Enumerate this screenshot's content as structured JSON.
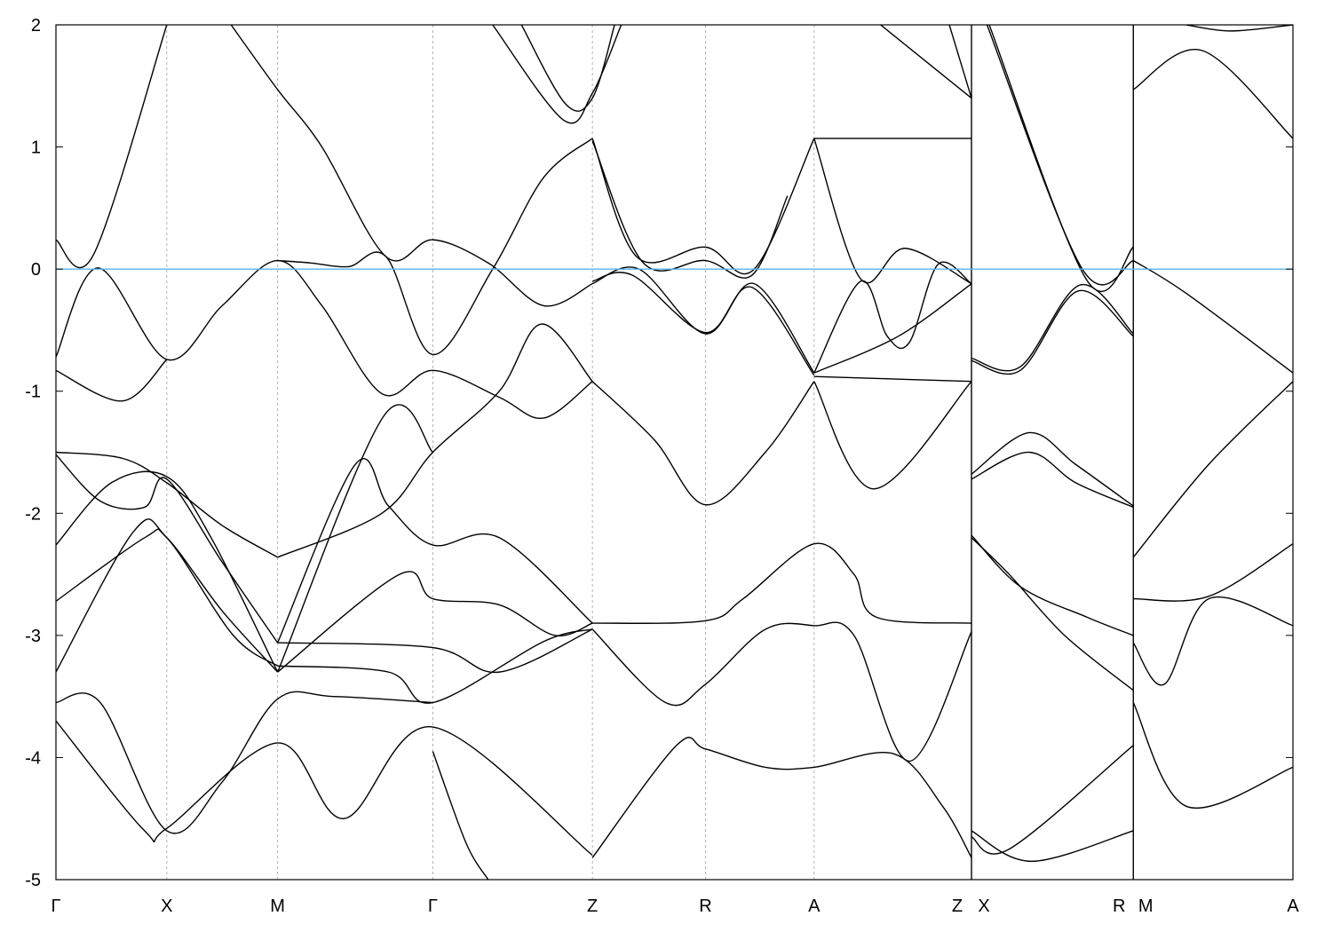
{
  "chart_data": {
    "type": "line",
    "title": "",
    "xlabel": "",
    "ylabel": "",
    "ylim": [
      -5,
      2
    ],
    "xlim": [
      0,
      5.58
    ],
    "yticks": [
      -5,
      -4,
      -3,
      -2,
      -1,
      0,
      1,
      2
    ],
    "ytick_labels": [
      "-5",
      "-4",
      "-3",
      "-2",
      "-1",
      "0",
      "1",
      "2"
    ],
    "xticks": [
      {
        "label": "Γ",
        "k": 0
      },
      {
        "label": "X",
        "k": 0.5
      },
      {
        "label": "M",
        "k": 1.0
      },
      {
        "label": "Γ",
        "k": 1.7
      },
      {
        "label": "Z",
        "k": 2.42
      },
      {
        "label": "R",
        "k": 2.93
      },
      {
        "label": "A",
        "k": 3.42
      },
      {
        "label": "Z",
        "k": 4.13,
        "side": "left"
      },
      {
        "label": "X",
        "k": 4.13,
        "side": "right"
      },
      {
        "label": "R",
        "k": 4.86,
        "side": "left"
      },
      {
        "label": "M",
        "k": 4.86,
        "side": "right"
      },
      {
        "label": "A",
        "k": 5.58
      }
    ],
    "path_breaks": [
      4.13,
      4.86
    ],
    "grid": "vertical dashed at symmetry points",
    "fermi_level": 0,
    "colors": {
      "bands": "#000000",
      "fermi_line": "#56b4e9",
      "grid": "#a0a0a0"
    },
    "bands": [
      [
        [
          0,
          0.24
        ],
        [
          0.17,
          0.12
        ],
        [
          0.5,
          2.0
        ]
      ],
      [
        [
          0,
          -0.72
        ],
        [
          0.19,
          0.01
        ],
        [
          0.5,
          -0.74
        ],
        [
          0.75,
          -0.3
        ],
        [
          1.0,
          0.07
        ],
        [
          1.2,
          -0.3
        ],
        [
          1.47,
          -1.02
        ],
        [
          1.7,
          -0.83
        ],
        [
          2.0,
          -1.05
        ],
        [
          2.2,
          -1.22
        ],
        [
          2.42,
          -0.92
        ]
      ],
      [
        [
          0,
          -0.83
        ],
        [
          0.3,
          -1.08
        ],
        [
          0.5,
          -0.74
        ]
      ],
      [
        [
          1.0,
          0.07
        ],
        [
          1.15,
          0.05
        ],
        [
          1.32,
          0.02
        ],
        [
          1.49,
          0.1
        ],
        [
          1.7,
          -0.7
        ],
        [
          1.97,
          0.0
        ],
        [
          2.2,
          0.75
        ],
        [
          2.42,
          1.07
        ]
      ],
      [
        [
          0.79,
          2.0
        ],
        [
          1.0,
          1.47
        ],
        [
          1.2,
          1.0
        ],
        [
          1.49,
          0.1
        ],
        [
          1.7,
          0.24
        ],
        [
          1.95,
          0.05
        ],
        [
          2.2,
          -0.3
        ],
        [
          2.42,
          -0.12
        ]
      ],
      [
        [
          2.42,
          -0.12
        ],
        [
          2.63,
          0.0
        ],
        [
          2.93,
          -0.53
        ],
        [
          3.15,
          -0.12
        ],
        [
          3.42,
          -0.85
        ]
      ],
      [
        [
          2.42,
          -0.1
        ],
        [
          2.6,
          -0.05
        ],
        [
          2.93,
          -0.52
        ],
        [
          3.14,
          -0.15
        ],
        [
          3.42,
          -0.87
        ]
      ],
      [
        [
          2.42,
          1.07
        ],
        [
          2.62,
          0.1
        ],
        [
          2.93,
          0.18
        ],
        [
          3.15,
          0.0
        ],
        [
          3.42,
          1.07
        ]
      ],
      [
        [
          2.42,
          1.05
        ],
        [
          2.65,
          0.05
        ],
        [
          2.93,
          0.07
        ],
        [
          3.14,
          -0.05
        ],
        [
          3.3,
          0.6
        ]
      ],
      [
        [
          3.42,
          1.07
        ],
        [
          3.63,
          -0.08
        ],
        [
          3.83,
          0.17
        ],
        [
          4.13,
          -0.12
        ]
      ],
      [
        [
          3.42,
          1.07
        ],
        [
          4.13,
          1.07
        ]
      ],
      [
        [
          3.42,
          -0.85
        ],
        [
          3.63,
          -0.1
        ],
        [
          3.75,
          -0.55
        ],
        [
          3.85,
          -0.6
        ],
        [
          3.98,
          0.04
        ],
        [
          4.13,
          -0.12
        ]
      ],
      [
        [
          3.42,
          -0.85
        ],
        [
          3.8,
          -0.55
        ],
        [
          4.13,
          -0.12
        ]
      ],
      [
        [
          2.1,
          2.0
        ],
        [
          2.3,
          1.35
        ],
        [
          2.42,
          1.4
        ],
        [
          2.52,
          2.0
        ]
      ],
      [
        [
          1.97,
          2.0
        ],
        [
          2.29,
          1.22
        ],
        [
          2.42,
          1.44
        ],
        [
          2.55,
          2.0
        ]
      ],
      [
        [
          3.72,
          2.0
        ],
        [
          4.13,
          1.4
        ]
      ],
      [
        [
          4.03,
          2.0
        ],
        [
          4.13,
          1.4
        ]
      ],
      [
        [
          4.21,
          2.0
        ],
        [
          4.65,
          -0.09
        ],
        [
          4.86,
          0.18
        ]
      ],
      [
        [
          4.2,
          2.0
        ],
        [
          4.63,
          0.0
        ],
        [
          4.86,
          0.07
        ]
      ],
      [
        [
          4.13,
          -0.73
        ],
        [
          4.35,
          -0.8
        ],
        [
          4.62,
          -0.13
        ],
        [
          4.86,
          -0.53
        ]
      ],
      [
        [
          4.13,
          -0.75
        ],
        [
          4.35,
          -0.83
        ],
        [
          4.61,
          -0.18
        ],
        [
          4.86,
          -0.55
        ]
      ],
      [
        [
          4.13,
          -1.68
        ],
        [
          4.39,
          -1.34
        ],
        [
          4.6,
          -1.6
        ],
        [
          4.86,
          -1.94
        ]
      ],
      [
        [
          4.13,
          -1.72
        ],
        [
          4.39,
          -1.5
        ],
        [
          4.6,
          -1.75
        ],
        [
          4.86,
          -1.95
        ]
      ],
      [
        [
          4.13,
          -2.2
        ],
        [
          4.3,
          -2.5
        ],
        [
          4.55,
          -3.0
        ],
        [
          4.86,
          -3.45
        ]
      ],
      [
        [
          4.13,
          -2.18
        ],
        [
          4.35,
          -2.6
        ],
        [
          4.65,
          -2.85
        ],
        [
          4.86,
          -3.0
        ]
      ],
      [
        [
          4.86,
          1.47
        ],
        [
          5.17,
          1.79
        ],
        [
          5.58,
          1.07
        ]
      ],
      [
        [
          5.1,
          2.0
        ],
        [
          5.3,
          1.95
        ],
        [
          5.58,
          2.0
        ]
      ],
      [
        [
          4.86,
          0.07
        ],
        [
          5.1,
          -0.2
        ],
        [
          5.58,
          -0.85
        ]
      ],
      [
        [
          4.86,
          -2.36
        ],
        [
          5.2,
          -1.6
        ],
        [
          5.58,
          -0.92
        ]
      ],
      [
        [
          0,
          -1.5
        ],
        [
          0.3,
          -1.55
        ],
        [
          0.5,
          -1.75
        ],
        [
          0.75,
          -2.1
        ],
        [
          1.0,
          -2.36
        ]
      ],
      [
        [
          0,
          -1.52
        ],
        [
          0.2,
          -1.9
        ],
        [
          0.4,
          -1.95
        ],
        [
          0.5,
          -1.72
        ],
        [
          0.75,
          -2.4
        ],
        [
          1.0,
          -3.06
        ]
      ],
      [
        [
          0,
          -2.26
        ],
        [
          0.25,
          -1.75
        ],
        [
          0.5,
          -1.7
        ],
        [
          0.7,
          -2.2
        ],
        [
          1.0,
          -3.3
        ]
      ],
      [
        [
          0,
          -2.72
        ],
        [
          0.4,
          -2.2
        ],
        [
          0.5,
          -2.2
        ],
        [
          0.75,
          -2.8
        ],
        [
          1.0,
          -3.3
        ]
      ],
      [
        [
          0,
          -3.3
        ],
        [
          0.35,
          -2.15
        ],
        [
          0.5,
          -2.2
        ],
        [
          0.8,
          -3.0
        ],
        [
          1.0,
          -3.25
        ]
      ],
      [
        [
          1.0,
          -3.06
        ],
        [
          1.35,
          -1.6
        ],
        [
          1.5,
          -1.94
        ],
        [
          1.7,
          -2.26
        ],
        [
          2.0,
          -2.2
        ],
        [
          2.42,
          -2.9
        ]
      ],
      [
        [
          1.0,
          -2.36
        ],
        [
          1.47,
          -2.0
        ],
        [
          1.7,
          -1.5
        ],
        [
          2.0,
          -1.0
        ],
        [
          2.19,
          -0.45
        ],
        [
          2.42,
          -0.92
        ]
      ],
      [
        [
          1.0,
          -3.3
        ],
        [
          1.48,
          -1.2
        ],
        [
          1.7,
          -1.5
        ]
      ],
      [
        [
          1.0,
          -3.3
        ],
        [
          1.55,
          -2.5
        ],
        [
          1.7,
          -2.7
        ],
        [
          2.0,
          -2.75
        ],
        [
          2.25,
          -3.0
        ],
        [
          2.42,
          -2.9
        ]
      ],
      [
        [
          1.0,
          -3.06
        ],
        [
          1.7,
          -3.1
        ],
        [
          2.0,
          -3.3
        ],
        [
          2.42,
          -2.95
        ]
      ],
      [
        [
          1.0,
          -3.25
        ],
        [
          1.5,
          -3.3
        ],
        [
          1.7,
          -3.55
        ],
        [
          2.2,
          -3.05
        ],
        [
          2.42,
          -2.95
        ]
      ],
      [
        [
          2.42,
          -0.92
        ],
        [
          2.7,
          -1.4
        ],
        [
          2.93,
          -1.93
        ],
        [
          3.2,
          -1.5
        ],
        [
          3.42,
          -0.92
        ]
      ],
      [
        [
          3.42,
          -0.92
        ],
        [
          3.69,
          -1.8
        ],
        [
          4.13,
          -0.92
        ]
      ],
      [
        [
          3.42,
          -0.88
        ],
        [
          4.13,
          -0.92
        ]
      ],
      [
        [
          2.42,
          -2.9
        ],
        [
          2.93,
          -2.88
        ],
        [
          3.1,
          -2.7
        ],
        [
          3.42,
          -2.25
        ],
        [
          3.6,
          -2.5
        ],
        [
          3.7,
          -2.85
        ],
        [
          4.13,
          -2.9
        ]
      ],
      [
        [
          2.42,
          -2.95
        ],
        [
          2.75,
          -3.55
        ],
        [
          2.93,
          -3.4
        ],
        [
          3.2,
          -2.95
        ],
        [
          3.42,
          -2.92
        ],
        [
          3.6,
          -3.0
        ],
        [
          3.85,
          -4.03
        ],
        [
          4.13,
          -2.97
        ]
      ],
      [
        [
          2.42,
          -4.82
        ],
        [
          2.8,
          -3.9
        ],
        [
          2.93,
          -3.93
        ],
        [
          3.2,
          -4.08
        ],
        [
          3.42,
          -4.08
        ],
        [
          3.78,
          -3.97
        ],
        [
          4.0,
          -4.4
        ],
        [
          4.13,
          -4.82
        ]
      ],
      [
        [
          0,
          -3.55
        ],
        [
          0.2,
          -3.55
        ],
        [
          0.5,
          -4.6
        ],
        [
          0.75,
          -4.2
        ],
        [
          1.0,
          -3.52
        ],
        [
          1.25,
          -3.5
        ],
        [
          1.7,
          -3.55
        ]
      ],
      [
        [
          0,
          -3.7
        ],
        [
          0.4,
          -4.6
        ],
        [
          0.5,
          -4.58
        ],
        [
          1.0,
          -3.88
        ],
        [
          1.3,
          -4.5
        ],
        [
          1.7,
          -3.75
        ],
        [
          2.42,
          -4.8
        ]
      ],
      [
        [
          1.7,
          -3.95
        ],
        [
          1.85,
          -4.7
        ],
        [
          1.95,
          -5.0
        ]
      ],
      [
        [
          4.86,
          -3.55
        ],
        [
          5.1,
          -4.4
        ],
        [
          5.58,
          -4.08
        ]
      ],
      [
        [
          4.86,
          -3.06
        ],
        [
          5.0,
          -3.4
        ],
        [
          5.2,
          -2.7
        ],
        [
          5.58,
          -2.92
        ]
      ],
      [
        [
          4.86,
          -2.7
        ],
        [
          5.2,
          -2.68
        ],
        [
          5.58,
          -2.25
        ]
      ],
      [
        [
          4.13,
          -4.6
        ],
        [
          4.4,
          -4.85
        ],
        [
          4.86,
          -4.6
        ]
      ],
      [
        [
          4.13,
          -4.65
        ],
        [
          4.3,
          -4.75
        ],
        [
          4.86,
          -3.9
        ]
      ]
    ]
  }
}
